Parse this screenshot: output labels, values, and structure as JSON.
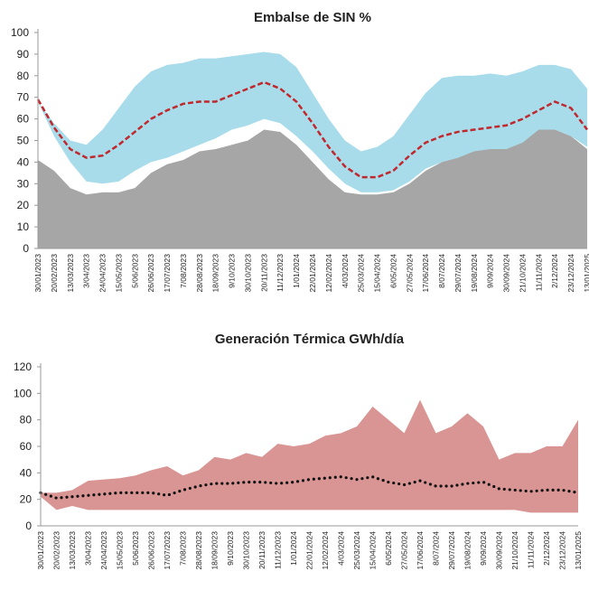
{
  "chart_data": [
    {
      "type": "area",
      "title": "Embalse de SIN %",
      "categories": [
        "30/01/2023",
        "20/02/2023",
        "13/03/2023",
        "3/04/2023",
        "24/04/2023",
        "15/05/2023",
        "5/06/2023",
        "26/06/2023",
        "17/07/2023",
        "7/08/2023",
        "28/08/2023",
        "18/09/2023",
        "9/10/2023",
        "30/10/2023",
        "20/11/2023",
        "11/12/2023",
        "1/01/2024",
        "22/01/2024",
        "12/02/2024",
        "4/03/2024",
        "25/03/2024",
        "15/04/2024",
        "6/05/2024",
        "27/05/2024",
        "17/06/2024",
        "8/07/2024",
        "29/07/2024",
        "19/08/2024",
        "9/09/2024",
        "30/09/2024",
        "21/10/2024",
        "11/11/2024",
        "2/12/2024",
        "23/12/2024",
        "13/01/2025"
      ],
      "series": [
        {
          "style": "area",
          "color": "#a8dcea",
          "values": [
            68,
            58,
            50,
            48,
            55,
            65,
            75,
            82,
            85,
            86,
            88,
            88,
            89,
            90,
            91,
            90,
            84,
            72,
            60,
            50,
            45,
            47,
            52,
            62,
            72,
            79,
            80,
            80,
            81,
            80,
            82,
            85,
            85,
            83,
            74
          ]
        },
        {
          "style": "area",
          "color": "#ffffff",
          "values": [
            68,
            52,
            40,
            31,
            30,
            31,
            36,
            40,
            42,
            45,
            48,
            51,
            55,
            57,
            60,
            58,
            52,
            45,
            37,
            30,
            26,
            26,
            27,
            31,
            37,
            40,
            42,
            44,
            46,
            46,
            48,
            54,
            55,
            52,
            47
          ]
        },
        {
          "style": "area",
          "color": "#a6a6a6",
          "values": [
            41,
            36,
            28,
            25,
            26,
            26,
            28,
            35,
            39,
            41,
            45,
            46,
            48,
            50,
            55,
            54,
            48,
            40,
            32,
            26,
            25,
            25,
            26,
            30,
            36,
            40,
            42,
            45,
            46,
            46,
            49,
            55,
            55,
            52,
            46
          ]
        },
        {
          "style": "line",
          "dash": "dashed",
          "color": "#c0282d",
          "values": [
            69,
            56,
            46,
            42,
            43,
            48,
            54,
            60,
            64,
            67,
            68,
            68,
            71,
            74,
            77,
            74,
            68,
            58,
            47,
            38,
            33,
            33,
            36,
            43,
            49,
            52,
            54,
            55,
            56,
            57,
            60,
            64,
            68,
            65,
            55
          ]
        }
      ],
      "ylim": [
        0,
        100
      ],
      "yticks": [
        0,
        10,
        20,
        30,
        40,
        50,
        60,
        70,
        80,
        90,
        100
      ]
    },
    {
      "type": "area",
      "title": "Generación Térmica GWh/día",
      "categories": [
        "30/01/2023",
        "20/02/2023",
        "13/03/2023",
        "3/04/2023",
        "24/04/2023",
        "15/05/2023",
        "5/06/2023",
        "26/06/2023",
        "17/07/2023",
        "7/08/2023",
        "28/08/2023",
        "18/09/2023",
        "9/10/2023",
        "30/10/2023",
        "20/11/2023",
        "11/12/2023",
        "1/01/2024",
        "22/01/2024",
        "12/02/2024",
        "4/03/2024",
        "25/03/2024",
        "15/04/2024",
        "6/05/2024",
        "27/05/2024",
        "17/06/2024",
        "8/07/2024",
        "29/07/2024",
        "19/08/2024",
        "9/09/2024",
        "30/09/2024",
        "21/10/2024",
        "11/11/2024",
        "2/12/2024",
        "23/12/2024",
        "13/01/2025"
      ],
      "series": [
        {
          "style": "area",
          "color": "#d99594",
          "values": [
            25,
            25,
            27,
            34,
            35,
            36,
            38,
            42,
            45,
            38,
            42,
            52,
            50,
            55,
            52,
            62,
            60,
            62,
            68,
            70,
            75,
            90,
            80,
            70,
            95,
            70,
            75,
            85,
            75,
            50,
            55,
            55,
            60,
            60,
            80
          ]
        },
        {
          "style": "area",
          "color": "#ffffff",
          "values": [
            22,
            12,
            15,
            12,
            12,
            12,
            12,
            12,
            12,
            12,
            12,
            12,
            12,
            12,
            12,
            12,
            12,
            12,
            12,
            12,
            12,
            12,
            12,
            12,
            12,
            12,
            12,
            12,
            12,
            12,
            12,
            10,
            10,
            10,
            10
          ]
        },
        {
          "style": "line",
          "dash": "dotted",
          "color": "#111111",
          "values": [
            25,
            21,
            22,
            23,
            24,
            25,
            25,
            25,
            23,
            27,
            30,
            32,
            32,
            33,
            33,
            32,
            33,
            35,
            36,
            37,
            35,
            37,
            33,
            31,
            34,
            30,
            30,
            32,
            33,
            28,
            27,
            26,
            27,
            27,
            25
          ]
        }
      ],
      "ylim": [
        0,
        120
      ],
      "yticks": [
        0,
        20,
        40,
        60,
        80,
        100,
        120
      ]
    }
  ]
}
